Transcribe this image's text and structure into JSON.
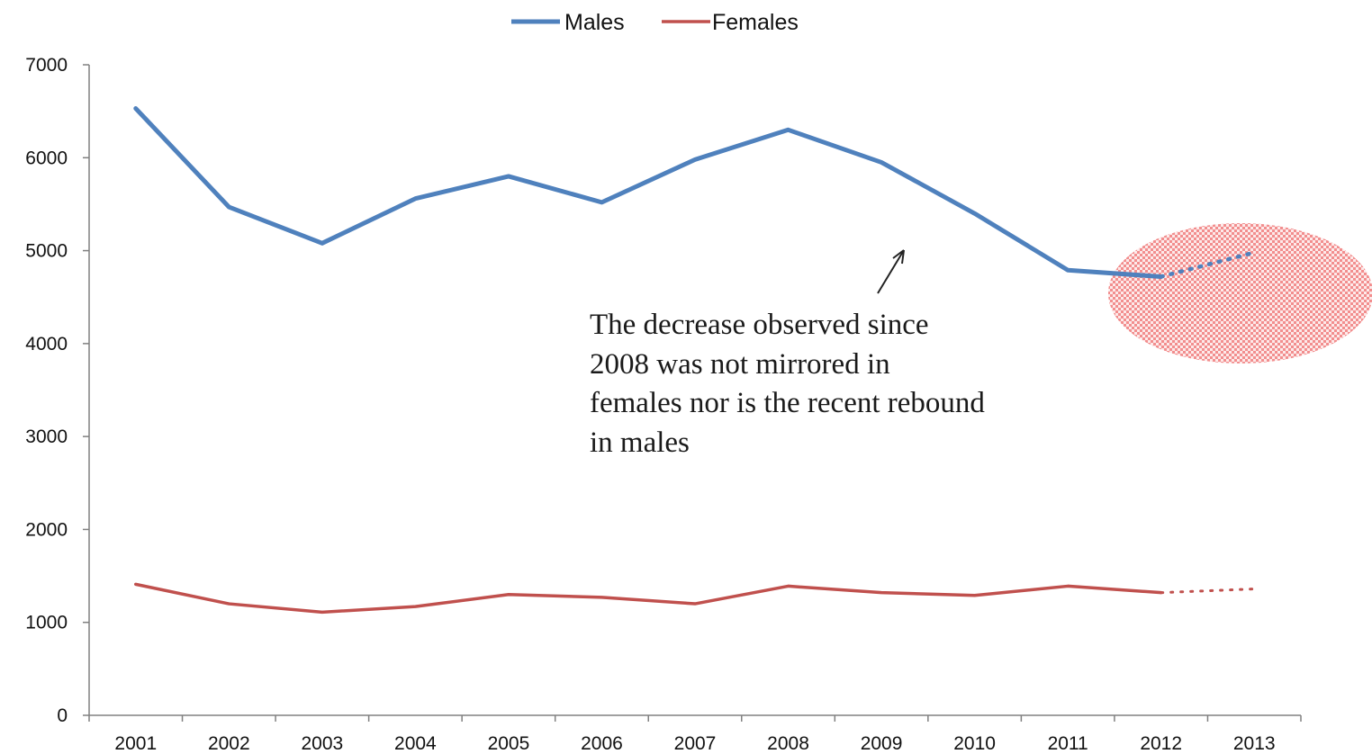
{
  "chart_data": {
    "type": "line",
    "categories": [
      "2001",
      "2002",
      "2003",
      "2004",
      "2005",
      "2006",
      "2007",
      "2008",
      "2009",
      "2010",
      "2011",
      "2012",
      "2013"
    ],
    "ylim": [
      0,
      7000
    ],
    "yticks": [
      0,
      1000,
      2000,
      3000,
      4000,
      5000,
      6000,
      7000
    ],
    "grid": false,
    "legend_position": "top-center",
    "series": [
      {
        "name": "Males",
        "color": "#4f81bd",
        "values": [
          6530,
          5470,
          5080,
          5560,
          5800,
          5520,
          5980,
          6300,
          5950,
          5400,
          4790,
          4720,
          null
        ],
        "projected": [
          null,
          null,
          null,
          null,
          null,
          null,
          null,
          null,
          null,
          null,
          null,
          4720,
          4980
        ]
      },
      {
        "name": "Females",
        "color": "#c0504d",
        "values": [
          1410,
          1200,
          1110,
          1170,
          1300,
          1270,
          1200,
          1390,
          1320,
          1290,
          1390,
          1320,
          null
        ],
        "projected": [
          null,
          null,
          null,
          null,
          null,
          null,
          null,
          null,
          null,
          null,
          null,
          1320,
          1360
        ]
      }
    ],
    "annotations": [
      {
        "text": "The decrease observed since 2008 was not mirrored in females nor is the recent rebound in males"
      }
    ]
  }
}
